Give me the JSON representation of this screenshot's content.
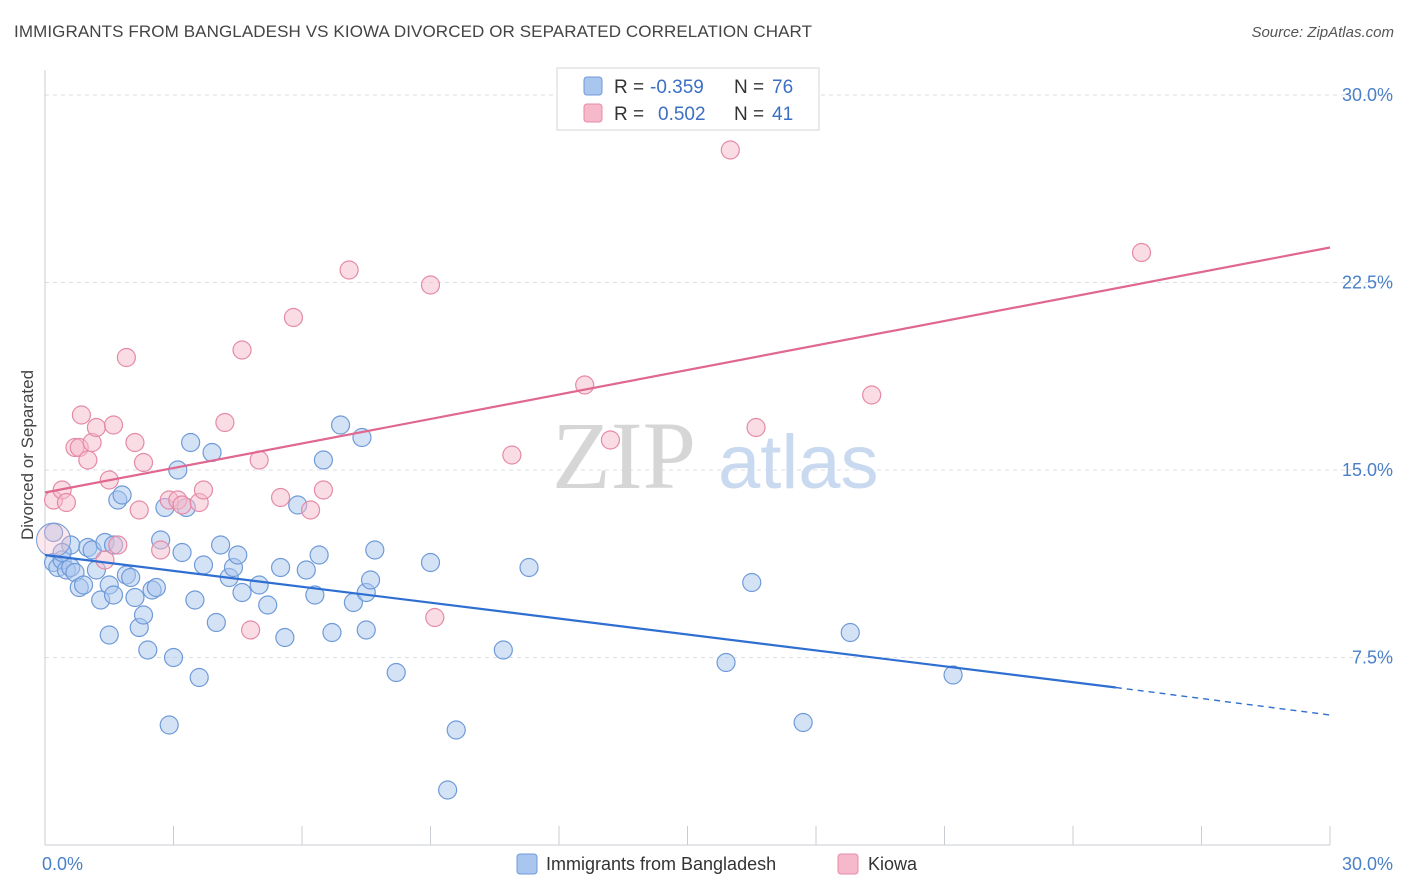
{
  "title": "IMMIGRANTS FROM BANGLADESH VS KIOWA DIVORCED OR SEPARATED CORRELATION CHART",
  "source": "Source: ZipAtlas.com",
  "watermark": {
    "zip": "ZIP",
    "atlas": "atlas"
  },
  "colors": {
    "blue_fill": "#a9c6ee",
    "blue_stroke": "#6f9ad8",
    "blue_line": "#2f6fd1",
    "pink_fill": "#f5b9cb",
    "pink_stroke": "#e58aa6",
    "pink_line": "#e0678f",
    "grid": "#d8dde6",
    "tick_text": "#4a80c8"
  },
  "legend": {
    "row1": {
      "r_label": "R = ",
      "r_value": "-0.359",
      "n_label": "N = ",
      "n_value": "76"
    },
    "row2": {
      "r_label": "R = ",
      "r_value": "0.502",
      "n_label": "N = ",
      "n_value": "41"
    }
  },
  "chart_data": {
    "type": "scatter",
    "title": "IMMIGRANTS FROM BANGLADESH VS KIOWA DIVORCED OR SEPARATED CORRELATION CHART",
    "xlabel": "",
    "ylabel": "Divorced or Separated",
    "xlim": [
      0,
      30
    ],
    "ylim": [
      0,
      31
    ],
    "x_tick_labels": [
      "0.0%",
      "30.0%"
    ],
    "y_ticks": [
      7.5,
      15.0,
      22.5,
      30.0
    ],
    "y_tick_labels": [
      "7.5%",
      "15.0%",
      "22.5%",
      "30.0%"
    ],
    "grid": "horizontal dashed",
    "legend_position": "top-center",
    "series": [
      {
        "name": "Immigrants from Bangladesh",
        "color": "#a9c6ee",
        "points": [
          [
            0.2,
            11.3
          ],
          [
            0.3,
            11.1
          ],
          [
            0.4,
            11.4
          ],
          [
            0.5,
            11.0
          ],
          [
            0.6,
            11.1
          ],
          [
            0.7,
            10.9
          ],
          [
            0.8,
            10.3
          ],
          [
            0.9,
            10.4
          ],
          [
            0.6,
            12.0
          ],
          [
            1.0,
            11.9
          ],
          [
            1.1,
            11.8
          ],
          [
            1.2,
            11.0
          ],
          [
            1.3,
            9.8
          ],
          [
            1.4,
            12.1
          ],
          [
            1.5,
            10.4
          ],
          [
            1.6,
            10.0
          ],
          [
            1.7,
            13.8
          ],
          [
            1.8,
            14.0
          ],
          [
            1.9,
            10.8
          ],
          [
            2.0,
            10.7
          ],
          [
            1.5,
            8.4
          ],
          [
            2.1,
            9.9
          ],
          [
            2.2,
            8.7
          ],
          [
            2.3,
            9.2
          ],
          [
            2.4,
            7.8
          ],
          [
            2.5,
            10.2
          ],
          [
            2.6,
            10.3
          ],
          [
            2.7,
            12.2
          ],
          [
            2.8,
            13.5
          ],
          [
            2.9,
            4.8
          ],
          [
            3.0,
            7.5
          ],
          [
            3.1,
            15.0
          ],
          [
            3.2,
            11.7
          ],
          [
            3.3,
            13.5
          ],
          [
            3.4,
            16.1
          ],
          [
            3.5,
            9.8
          ],
          [
            3.6,
            6.7
          ],
          [
            3.7,
            11.2
          ],
          [
            3.9,
            15.7
          ],
          [
            4.0,
            8.9
          ],
          [
            4.1,
            12.0
          ],
          [
            4.3,
            10.7
          ],
          [
            4.4,
            11.1
          ],
          [
            4.5,
            11.6
          ],
          [
            4.6,
            10.1
          ],
          [
            5.0,
            10.4
          ],
          [
            5.2,
            9.6
          ],
          [
            5.6,
            8.3
          ],
          [
            5.5,
            11.1
          ],
          [
            5.9,
            13.6
          ],
          [
            6.1,
            11.0
          ],
          [
            6.3,
            10.0
          ],
          [
            6.4,
            11.6
          ],
          [
            6.5,
            15.4
          ],
          [
            6.7,
            8.5
          ],
          [
            6.9,
            16.8
          ],
          [
            7.2,
            9.7
          ],
          [
            7.4,
            16.3
          ],
          [
            7.5,
            10.1
          ],
          [
            7.5,
            8.6
          ],
          [
            7.6,
            10.6
          ],
          [
            7.7,
            11.8
          ],
          [
            8.2,
            6.9
          ],
          [
            9.0,
            11.3
          ],
          [
            9.6,
            4.6
          ],
          [
            9.4,
            2.2
          ],
          [
            10.7,
            7.8
          ],
          [
            11.3,
            11.1
          ],
          [
            15.9,
            7.3
          ],
          [
            16.5,
            10.5
          ],
          [
            17.7,
            4.9
          ],
          [
            18.8,
            8.5
          ],
          [
            21.2,
            6.8
          ],
          [
            1.6,
            12.0
          ],
          [
            0.2,
            12.5
          ],
          [
            0.4,
            11.7
          ]
        ],
        "trend": {
          "x0": 0,
          "y0": 11.6,
          "x1": 25.0,
          "y1": 6.3,
          "dash_x1": 30,
          "dash_y1": 5.2
        }
      },
      {
        "name": "Kiowa",
        "color": "#f5b9cb",
        "points": [
          [
            0.2,
            13.8
          ],
          [
            0.4,
            14.2
          ],
          [
            0.5,
            13.7
          ],
          [
            0.7,
            15.9
          ],
          [
            0.8,
            15.9
          ],
          [
            0.85,
            17.2
          ],
          [
            1.0,
            15.4
          ],
          [
            1.1,
            16.1
          ],
          [
            1.2,
            16.7
          ],
          [
            1.4,
            11.4
          ],
          [
            1.5,
            14.6
          ],
          [
            1.6,
            16.8
          ],
          [
            1.7,
            12.0
          ],
          [
            1.9,
            19.5
          ],
          [
            2.1,
            16.1
          ],
          [
            2.2,
            13.4
          ],
          [
            2.3,
            15.3
          ],
          [
            2.7,
            11.8
          ],
          [
            2.9,
            13.8
          ],
          [
            3.1,
            13.8
          ],
          [
            3.2,
            13.6
          ],
          [
            3.6,
            13.7
          ],
          [
            3.7,
            14.2
          ],
          [
            4.2,
            16.9
          ],
          [
            4.6,
            19.8
          ],
          [
            4.8,
            8.6
          ],
          [
            5.0,
            15.4
          ],
          [
            5.5,
            13.9
          ],
          [
            5.8,
            21.1
          ],
          [
            6.2,
            13.4
          ],
          [
            6.5,
            14.2
          ],
          [
            7.1,
            23.0
          ],
          [
            9.0,
            22.4
          ],
          [
            9.1,
            9.1
          ],
          [
            10.9,
            15.6
          ],
          [
            12.6,
            18.4
          ],
          [
            13.2,
            16.2
          ],
          [
            16.0,
            27.8
          ],
          [
            16.6,
            16.7
          ],
          [
            19.3,
            18.0
          ],
          [
            25.6,
            23.7
          ]
        ],
        "trend": {
          "x0": 0,
          "y0": 14.1,
          "x1": 30,
          "y1": 23.9
        }
      }
    ]
  }
}
